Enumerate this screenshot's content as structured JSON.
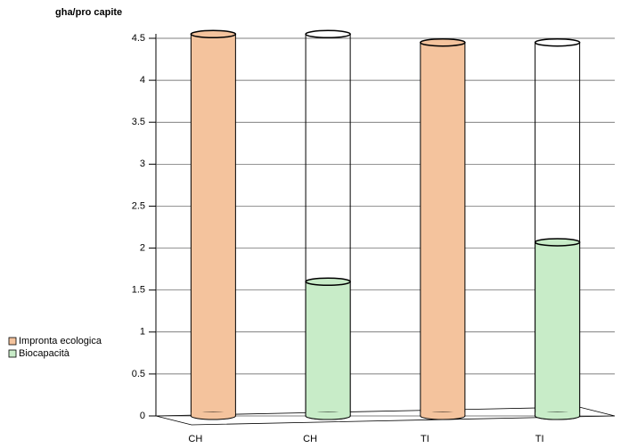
{
  "chart_data": {
    "type": "bar",
    "y_label": "gha/pro capite",
    "categories": [
      "CH",
      "CH",
      "TI",
      "TI"
    ],
    "series": [
      {
        "name": "Impronta ecologica",
        "color": "#f4c39d",
        "values": [
          4.55,
          null,
          4.45,
          null
        ]
      },
      {
        "name": "Biocapacità",
        "color": "#c8ecc8",
        "values": [
          null,
          1.6,
          null,
          2.07
        ]
      }
    ],
    "ylim": [
      0,
      4.5
    ],
    "yticks": [
      0,
      0.5,
      1,
      1.5,
      2,
      2.5,
      3,
      3.5,
      4,
      4.5
    ],
    "grid": true
  }
}
